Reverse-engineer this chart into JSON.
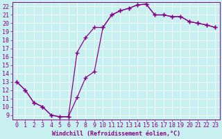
{
  "xlabel": "Windchill (Refroidissement éolien,°C)",
  "bg_color": "#c8f0f0",
  "line_color": "#880088",
  "grid_color": "#ffffff",
  "curve1_x": [
    0,
    1,
    2,
    3,
    4,
    5,
    6,
    7,
    8,
    9,
    10,
    11,
    12,
    13,
    14,
    15,
    16,
    17,
    18,
    19,
    20,
    21,
    22,
    23
  ],
  "curve1_y": [
    13.0,
    12.0,
    10.5,
    10.0,
    9.0,
    8.8,
    8.8,
    11.1,
    13.5,
    14.2,
    19.5,
    21.0,
    21.5,
    21.8,
    22.2,
    22.3,
    21.0,
    21.0,
    20.8,
    20.8,
    20.2,
    20.0,
    19.8,
    19.5
  ],
  "curve2_x": [
    0,
    1,
    2,
    3,
    4,
    5,
    6,
    7,
    8,
    9,
    10,
    11,
    12,
    13,
    14,
    15,
    16,
    17,
    18,
    19,
    20,
    21,
    22,
    23
  ],
  "curve2_y": [
    13.0,
    12.0,
    10.5,
    10.0,
    9.0,
    8.8,
    8.8,
    16.5,
    18.3,
    19.5,
    19.5,
    21.0,
    21.5,
    21.8,
    22.2,
    22.3,
    21.0,
    21.0,
    20.8,
    20.8,
    20.2,
    20.0,
    19.8,
    19.5
  ],
  "xlim": [
    -0.5,
    23.5
  ],
  "ylim": [
    8.5,
    22.5
  ],
  "xticks": [
    0,
    1,
    2,
    3,
    4,
    5,
    6,
    7,
    8,
    9,
    10,
    11,
    12,
    13,
    14,
    15,
    16,
    17,
    18,
    19,
    20,
    21,
    22,
    23
  ],
  "yticks": [
    9,
    10,
    11,
    12,
    13,
    14,
    15,
    16,
    17,
    18,
    19,
    20,
    21,
    22
  ],
  "fontsize": 6,
  "marker": "+",
  "markersize": 4,
  "linewidth": 0.9
}
